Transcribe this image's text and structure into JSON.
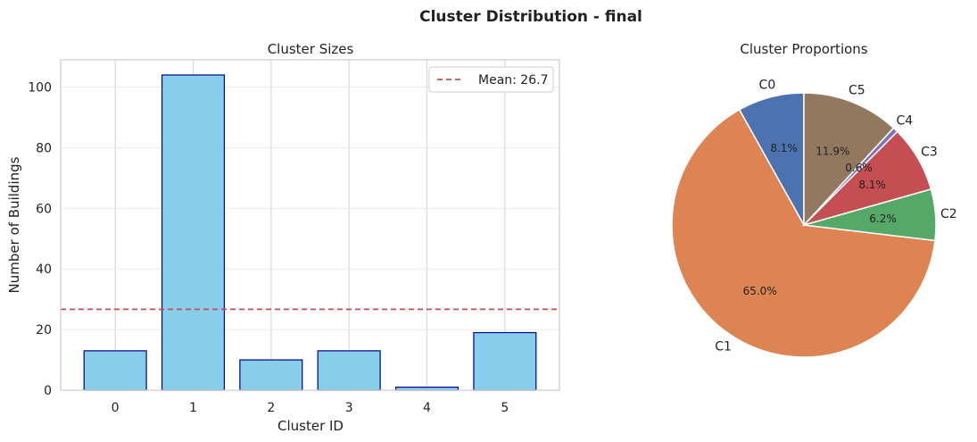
{
  "figure": {
    "title": "Cluster Distribution - final"
  },
  "chart_data": [
    {
      "type": "bar",
      "title": "Cluster Sizes",
      "xlabel": "Cluster ID",
      "ylabel": "Number of Buildings",
      "categories": [
        "0",
        "1",
        "2",
        "3",
        "4",
        "5"
      ],
      "values": [
        13,
        104,
        10,
        13,
        1,
        19
      ],
      "ylim": [
        0,
        109
      ],
      "yticks": [
        0,
        20,
        40,
        60,
        80,
        100
      ],
      "grid": true,
      "legend": {
        "position": "top-right",
        "entries": [
          "Mean: 26.7"
        ]
      },
      "reference_line": {
        "label": "Mean: 26.7",
        "value": 26.7,
        "style": "dashed",
        "color": "#c44e52"
      },
      "colors": {
        "bar_fill": "#87ceeb",
        "bar_edge": "#00008b"
      }
    },
    {
      "type": "pie",
      "title": "Cluster Proportions",
      "labels": [
        "C0",
        "C1",
        "C2",
        "C3",
        "C4",
        "C5"
      ],
      "values": [
        13,
        104,
        10,
        13,
        1,
        19
      ],
      "percent_labels": [
        "8.1%",
        "65.0%",
        "6.2%",
        "8.1%",
        "0.6%",
        "11.9%"
      ],
      "start_angle": 90,
      "direction": "counterclockwise",
      "colors": [
        "#4c72b0",
        "#dd8452",
        "#55a868",
        "#c44e52",
        "#8172b3",
        "#937860"
      ]
    }
  ]
}
